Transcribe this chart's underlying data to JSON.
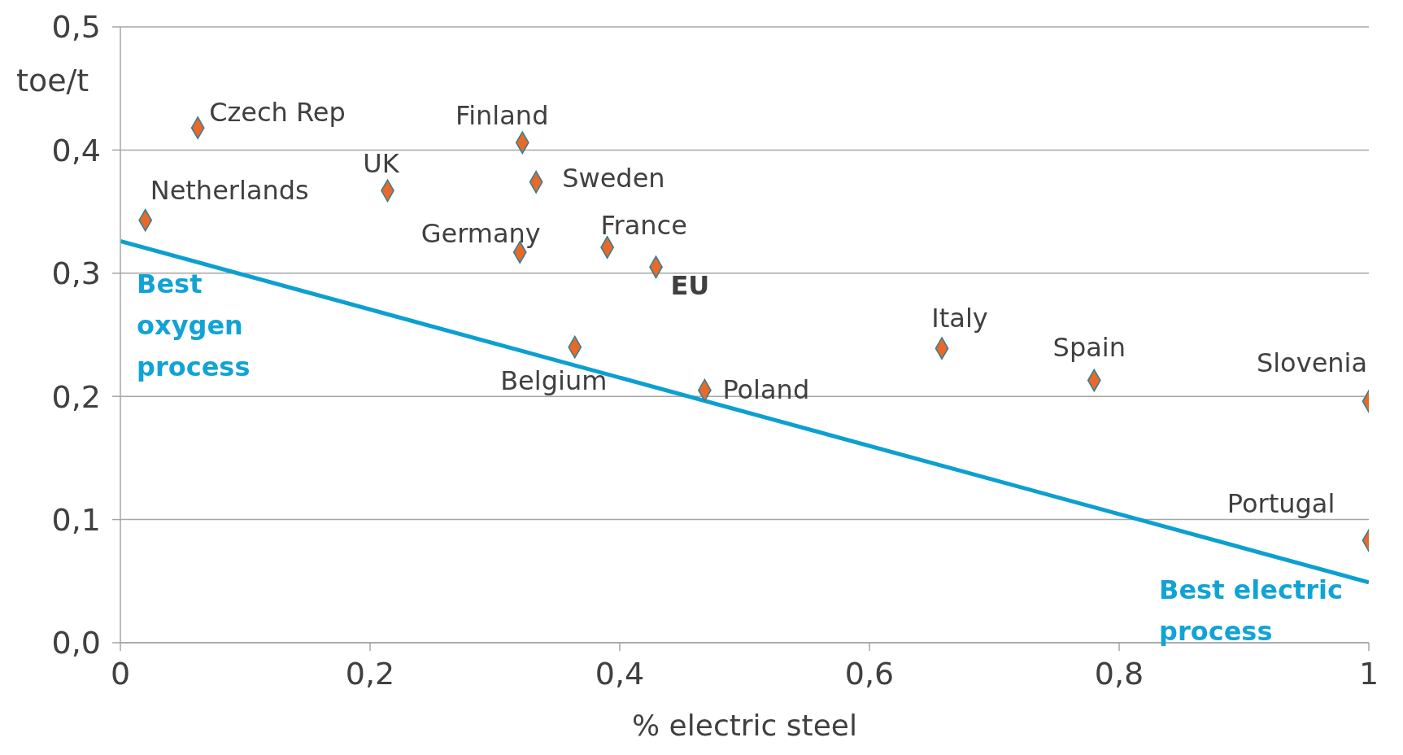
{
  "chart_data": {
    "type": "scatter",
    "xlabel": "% electric steel",
    "ylabel": "toe/t",
    "xlim": [
      0,
      1
    ],
    "ylim": [
      0,
      0.5
    ],
    "xticks": [
      0,
      {
        "value": 0.2,
        "label": "0,2"
      },
      {
        "value": 0.4,
        "label": "0,4"
      },
      {
        "value": 0.6,
        "label": "0,6"
      },
      {
        "value": 0.8,
        "label": "0,8"
      },
      1
    ],
    "yticks": [
      {
        "value": 0,
        "label": "0,0"
      },
      {
        "value": 0.1,
        "label": "0,1"
      },
      {
        "value": 0.2,
        "label": "0,2"
      },
      {
        "value": 0.3,
        "label": "0,3"
      },
      {
        "value": 0.4,
        "label": "0,4"
      },
      {
        "value": 0.5,
        "label": "0,5"
      }
    ],
    "grid": "y",
    "legend": false,
    "series": [
      {
        "marker": "diamond",
        "color": "#e8692a",
        "x": [
          0.062,
          0.322,
          0.214,
          0.333,
          0.02,
          0.32,
          0.39,
          0.429,
          0.364,
          0.658,
          0.78,
          0.468,
          1.0,
          1.0
        ],
        "values": [
          0.418,
          0.406,
          0.367,
          0.374,
          0.343,
          0.317,
          0.321,
          0.305,
          0.24,
          0.239,
          0.213,
          0.205,
          0.196,
          0.083
        ]
      },
      {
        "type": "line",
        "marker": "none",
        "color": "#0ca0d0",
        "x": [
          0,
          1
        ],
        "values": [
          0.326,
          0.049
        ]
      }
    ],
    "annotations": [
      {
        "text": "Czech Rep",
        "x": 0.062,
        "y": 0.418
      },
      {
        "text": "Finland",
        "x": 0.322,
        "y": 0.406
      },
      {
        "text": "UK",
        "x": 0.214,
        "y": 0.367
      },
      {
        "text": "Sweden",
        "x": 0.333,
        "y": 0.374
      },
      {
        "text": "Netherlands",
        "x": 0.02,
        "y": 0.343
      },
      {
        "text": "Germany",
        "x": 0.32,
        "y": 0.317
      },
      {
        "text": "France",
        "x": 0.39,
        "y": 0.321
      },
      {
        "text": "EU",
        "x": 0.429,
        "y": 0.305
      },
      {
        "text": "Belgium",
        "x": 0.364,
        "y": 0.24
      },
      {
        "text": "Italy",
        "x": 0.658,
        "y": 0.239
      },
      {
        "text": "Spain",
        "x": 0.78,
        "y": 0.213
      },
      {
        "text": "Poland",
        "x": 0.468,
        "y": 0.205
      },
      {
        "text": "Slovenia",
        "x": 1.0,
        "y": 0.196
      },
      {
        "text": "Portugal",
        "x": 1.0,
        "y": 0.083
      },
      {
        "text": "Best oxygen process",
        "x": 0,
        "y": 0.326
      },
      {
        "text": "Best electric process",
        "x": 1,
        "y": 0.049
      }
    ]
  }
}
